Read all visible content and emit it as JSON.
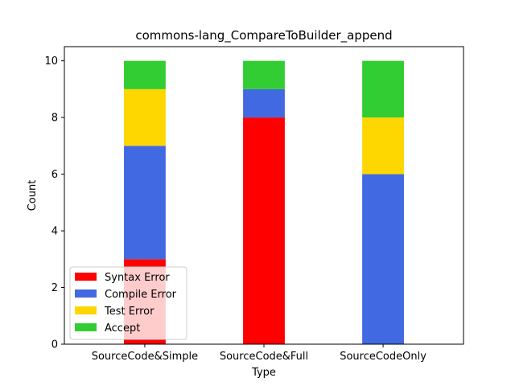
{
  "chart_data": {
    "type": "bar",
    "stacked": true,
    "title": "commons-lang_CompareToBuilder_append",
    "xlabel": "Type",
    "ylabel": "Count",
    "ylim": [
      0,
      10.5
    ],
    "yticks": [
      0,
      2,
      4,
      6,
      8,
      10
    ],
    "categories": [
      "SourceCode&Simple",
      "SourceCode&Full",
      "SourceCodeOnly"
    ],
    "series": [
      {
        "name": "Syntax Error",
        "color": "#ff0000",
        "values": [
          3,
          8,
          0
        ]
      },
      {
        "name": "Compile Error",
        "color": "#4169e1",
        "values": [
          4,
          1,
          6
        ]
      },
      {
        "name": "Test Error",
        "color": "#ffd700",
        "values": [
          2,
          0,
          2
        ]
      },
      {
        "name": "Accept",
        "color": "#32cd32",
        "values": [
          1,
          1,
          2
        ]
      }
    ],
    "grid": false,
    "legend_position": "lower-left"
  }
}
